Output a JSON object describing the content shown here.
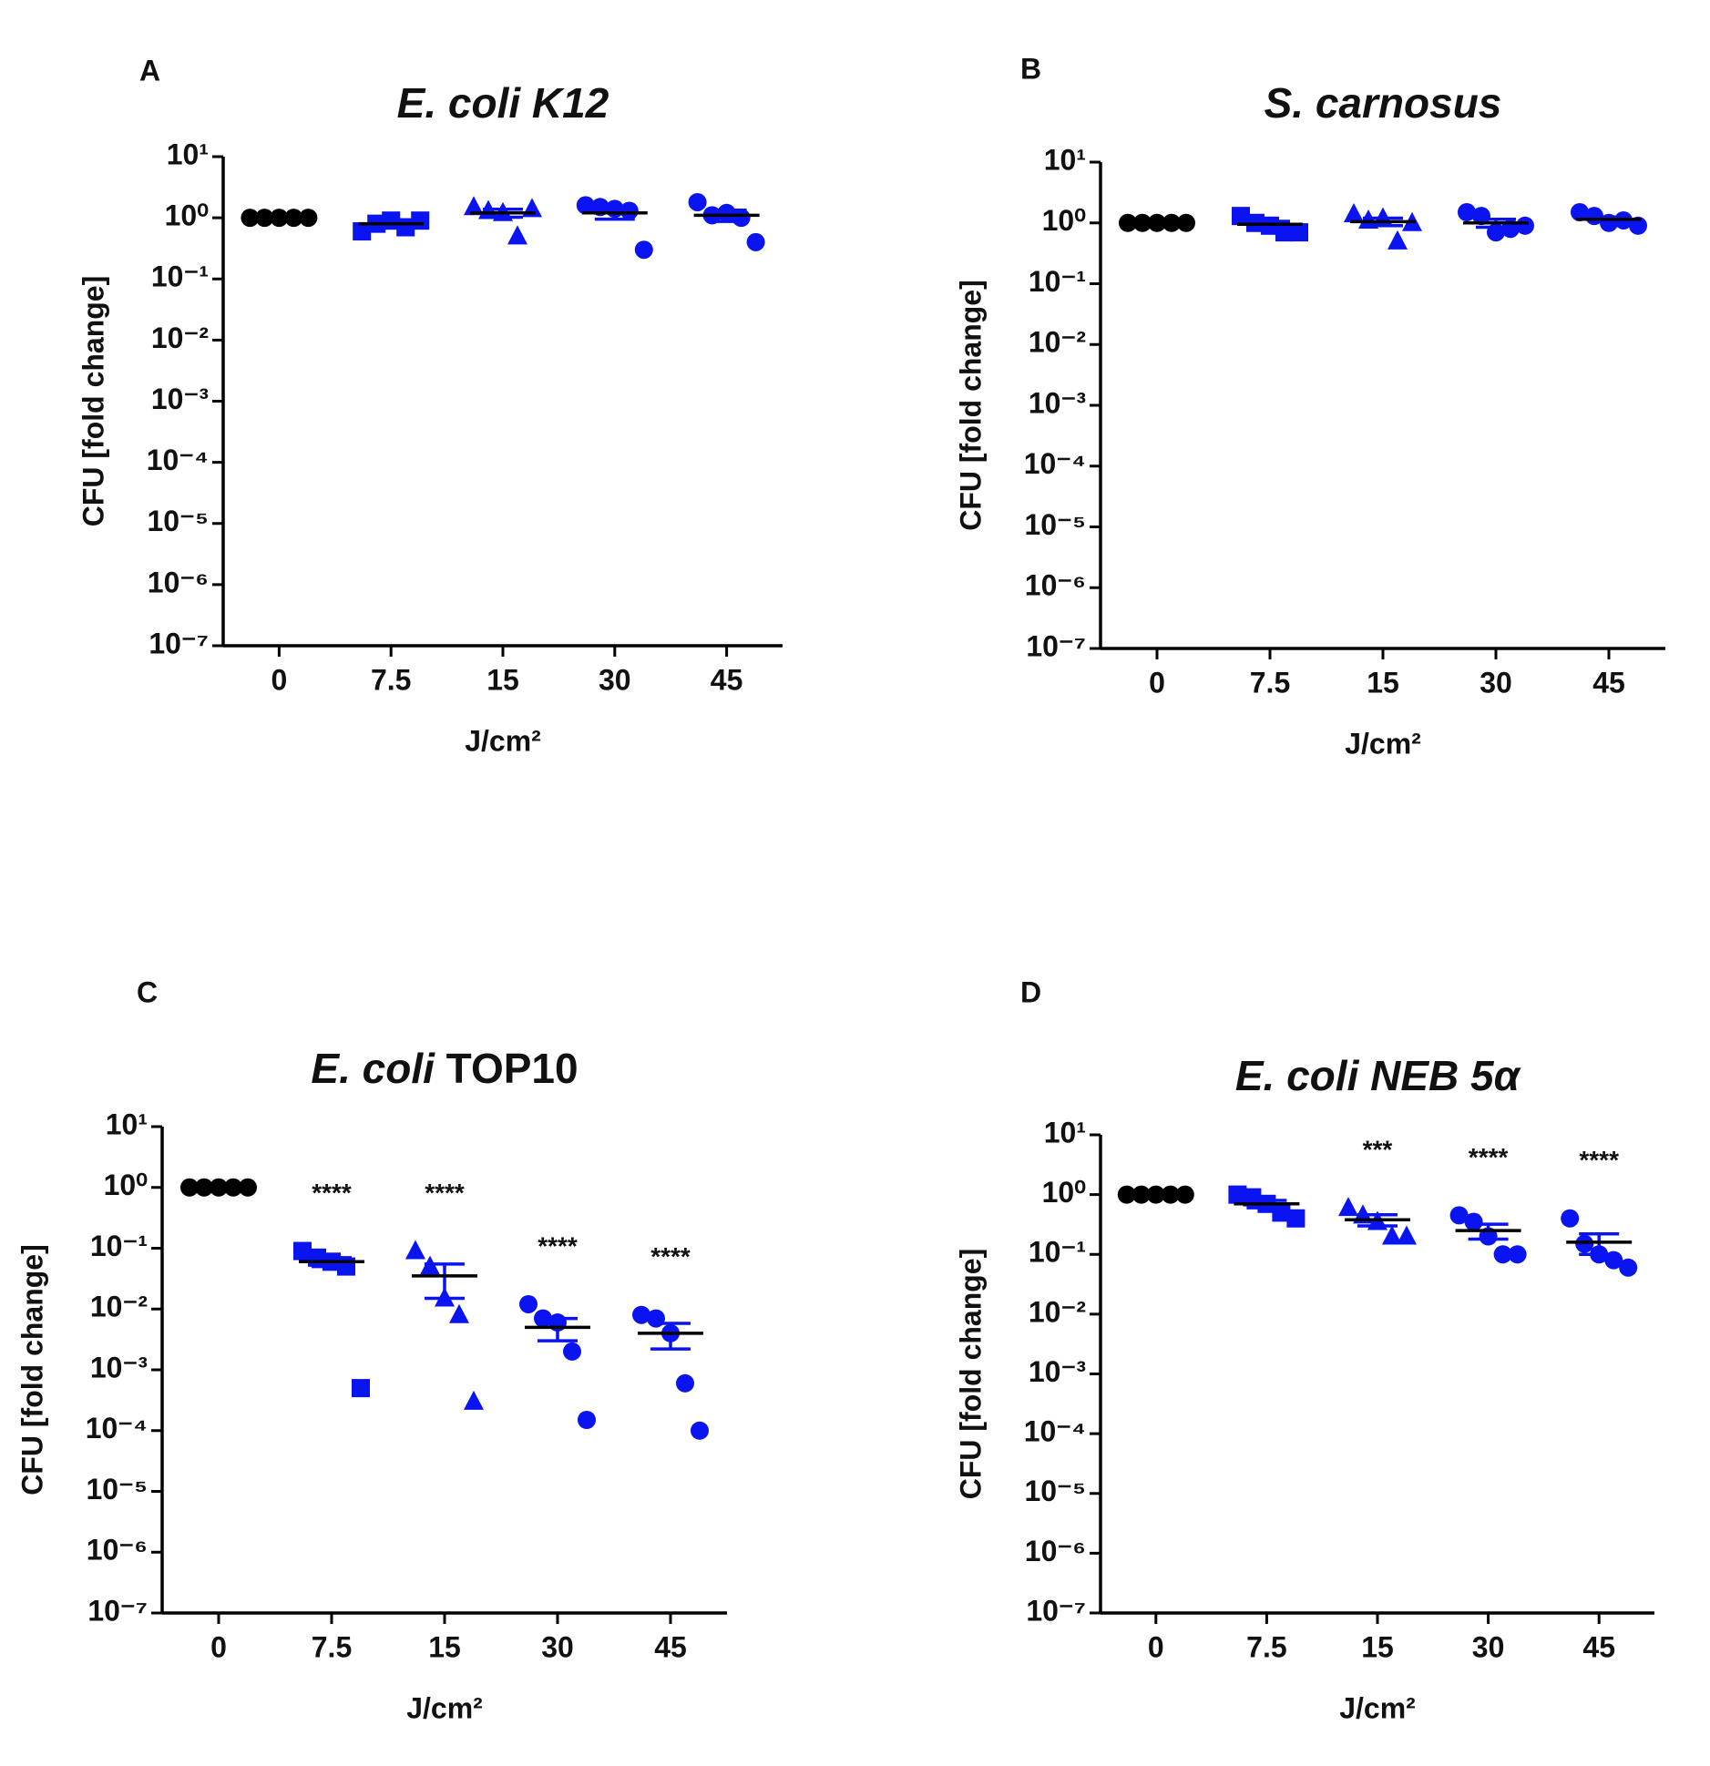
{
  "chart_data": [
    {
      "type": "scatter",
      "panel": "A",
      "title": [
        "E. coli K12"
      ],
      "title_italic": [
        true
      ],
      "xlabel": "J/cm²",
      "ylabel": "CFU [fold change]",
      "log_y": true,
      "categories": [
        "0",
        "7.5",
        "15",
        "30",
        "45"
      ],
      "markers": [
        "circle",
        "square",
        "triangle",
        "circle",
        "circle"
      ],
      "colors": [
        "#000000",
        "#0a14f0",
        "#0a14f0",
        "#0a14f0",
        "#0a14f0"
      ],
      "points": [
        [
          1,
          1,
          1,
          1,
          1
        ],
        [
          0.6,
          0.8,
          0.9,
          0.7,
          0.9
        ],
        [
          1.5,
          1.3,
          1.2,
          0.5,
          1.4
        ],
        [
          1.6,
          1.5,
          1.4,
          1.3,
          0.3
        ],
        [
          1.8,
          1.1,
          1.2,
          1.0,
          0.4
        ]
      ],
      "means": [
        1,
        0.8,
        1.2,
        1.2,
        1.1
      ],
      "sems": [
        0,
        0.06,
        0.18,
        0.25,
        0.23
      ],
      "annotations": [
        null,
        null,
        null,
        null,
        null
      ],
      "ylim": [
        1e-07,
        10
      ],
      "yticks": [
        {
          "value": 1e-07,
          "label": "10⁻⁷"
        },
        {
          "value": 1e-06,
          "label": "10⁻⁶"
        },
        {
          "value": 1e-05,
          "label": "10⁻⁵"
        },
        {
          "value": 0.0001,
          "label": "10⁻⁴"
        },
        {
          "value": 0.001,
          "label": "10⁻³"
        },
        {
          "value": 0.01,
          "label": "10⁻²"
        },
        {
          "value": 0.1,
          "label": "10⁻¹"
        },
        {
          "value": 1,
          "label": "10⁰"
        },
        {
          "value": 10,
          "label": "10¹"
        }
      ]
    },
    {
      "type": "scatter",
      "panel": "B",
      "title": [
        "S. carnosus"
      ],
      "title_italic": [
        true
      ],
      "xlabel": "J/cm²",
      "ylabel": "CFU [fold change]",
      "log_y": true,
      "categories": [
        "0",
        "7.5",
        "15",
        "30",
        "45"
      ],
      "markers": [
        "circle",
        "square",
        "triangle",
        "circle",
        "circle"
      ],
      "colors": [
        "#000000",
        "#0a14f0",
        "#0a14f0",
        "#0a14f0",
        "#0a14f0"
      ],
      "points": [
        [
          1,
          1,
          1,
          1,
          1
        ],
        [
          1.3,
          1.0,
          0.9,
          0.7,
          0.7
        ],
        [
          1.4,
          1.1,
          1.2,
          0.5,
          1.0
        ],
        [
          1.5,
          1.3,
          0.7,
          0.8,
          0.9
        ],
        [
          1.5,
          1.3,
          1.0,
          1.1,
          0.9
        ]
      ],
      "means": [
        1,
        0.95,
        1.05,
        1.0,
        1.15
      ],
      "sems": [
        0,
        0.11,
        0.15,
        0.15,
        0.1
      ],
      "annotations": [
        null,
        null,
        null,
        null,
        null
      ],
      "ylim": [
        1e-07,
        10
      ],
      "yticks": [
        {
          "value": 1e-07,
          "label": "10⁻⁷"
        },
        {
          "value": 1e-06,
          "label": "10⁻⁶"
        },
        {
          "value": 1e-05,
          "label": "10⁻⁵"
        },
        {
          "value": 0.0001,
          "label": "10⁻⁴"
        },
        {
          "value": 0.001,
          "label": "10⁻³"
        },
        {
          "value": 0.01,
          "label": "10⁻²"
        },
        {
          "value": 0.1,
          "label": "10⁻¹"
        },
        {
          "value": 1,
          "label": "10⁰"
        },
        {
          "value": 10,
          "label": "10¹"
        }
      ]
    },
    {
      "type": "scatter",
      "panel": "C",
      "title": [
        "E. coli",
        " TOP10"
      ],
      "title_italic": [
        true,
        false
      ],
      "xlabel": "J/cm²",
      "ylabel": "CFU [fold change]",
      "log_y": true,
      "categories": [
        "0",
        "7.5",
        "15",
        "30",
        "45"
      ],
      "markers": [
        "circle",
        "square",
        "triangle",
        "circle",
        "circle"
      ],
      "colors": [
        "#000000",
        "#0a14f0",
        "#0a14f0",
        "#0a14f0",
        "#0a14f0"
      ],
      "points": [
        [
          1,
          1,
          1,
          1,
          1
        ],
        [
          0.09,
          0.07,
          0.06,
          0.05,
          0.0005
        ],
        [
          0.09,
          0.05,
          0.015,
          0.008,
          0.0003
        ],
        [
          0.012,
          0.007,
          0.006,
          0.002,
          0.00015
        ],
        [
          0.008,
          0.007,
          0.004,
          0.0006,
          0.0001
        ]
      ],
      "means": [
        1,
        0.06,
        0.035,
        0.005,
        0.004
      ],
      "sems": [
        0,
        0.01,
        0.02,
        0.002,
        0.0018
      ],
      "annotations": [
        null,
        "****",
        "****",
        "****",
        "****"
      ],
      "ylim": [
        1e-07,
        10
      ],
      "yticks": [
        {
          "value": 1e-07,
          "label": "10⁻⁷"
        },
        {
          "value": 1e-06,
          "label": "10⁻⁶"
        },
        {
          "value": 1e-05,
          "label": "10⁻⁵"
        },
        {
          "value": 0.0001,
          "label": "10⁻⁴"
        },
        {
          "value": 0.001,
          "label": "10⁻³"
        },
        {
          "value": 0.01,
          "label": "10⁻²"
        },
        {
          "value": 0.1,
          "label": "10⁻¹"
        },
        {
          "value": 1,
          "label": "10⁰"
        },
        {
          "value": 10,
          "label": "10¹"
        }
      ]
    },
    {
      "type": "scatter",
      "panel": "D",
      "title": [
        "E. coli NEB 5α"
      ],
      "title_italic": [
        true
      ],
      "xlabel": "J/cm²",
      "ylabel": "CFU [fold change]",
      "log_y": true,
      "categories": [
        "0",
        "7.5",
        "15",
        "30",
        "45"
      ],
      "markers": [
        "circle",
        "square",
        "triangle",
        "circle",
        "circle"
      ],
      "colors": [
        "#000000",
        "#0a14f0",
        "#0a14f0",
        "#0a14f0",
        "#0a14f0"
      ],
      "points": [
        [
          1,
          1,
          1,
          1,
          1
        ],
        [
          1.0,
          0.9,
          0.7,
          0.5,
          0.4
        ],
        [
          0.6,
          0.45,
          0.35,
          0.2,
          0.2
        ],
        [
          0.45,
          0.35,
          0.2,
          0.1,
          0.1
        ],
        [
          0.4,
          0.15,
          0.1,
          0.08,
          0.06
        ]
      ],
      "means": [
        1,
        0.7,
        0.38,
        0.25,
        0.16
      ],
      "sems": [
        0,
        0.1,
        0.08,
        0.07,
        0.06
      ],
      "annotations": [
        null,
        null,
        "***",
        "****",
        "****"
      ],
      "ylim": [
        1e-07,
        10
      ],
      "yticks": [
        {
          "value": 1e-07,
          "label": "10⁻⁷"
        },
        {
          "value": 1e-06,
          "label": "10⁻⁶"
        },
        {
          "value": 1e-05,
          "label": "10⁻⁵"
        },
        {
          "value": 0.0001,
          "label": "10⁻⁴"
        },
        {
          "value": 0.001,
          "label": "10⁻³"
        },
        {
          "value": 0.01,
          "label": "10⁻²"
        },
        {
          "value": 0.1,
          "label": "10⁻¹"
        },
        {
          "value": 1,
          "label": "10⁰"
        },
        {
          "value": 10,
          "label": "10¹"
        }
      ]
    }
  ]
}
